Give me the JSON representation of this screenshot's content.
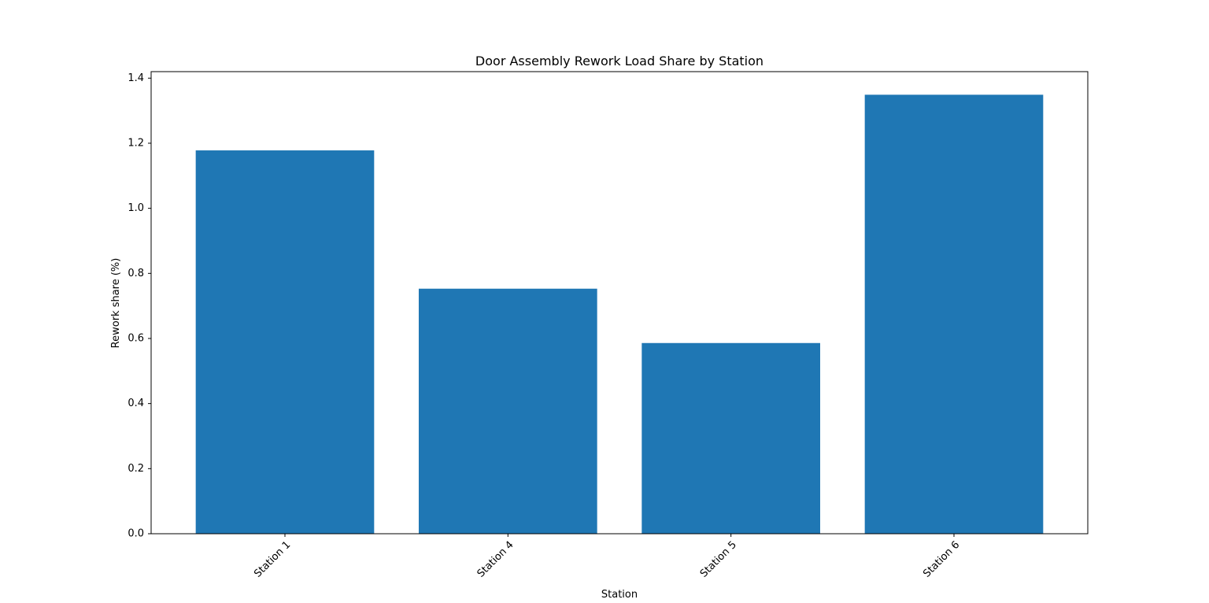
{
  "chart_data": {
    "type": "bar",
    "title": "Door Assembly Rework Load Share by Station",
    "xlabel": "Station",
    "ylabel": "Rework share (%)",
    "categories": [
      "Station 1",
      "Station 4",
      "Station 5",
      "Station 6"
    ],
    "values": [
      1.178,
      0.753,
      0.586,
      1.349
    ],
    "ylim": [
      0,
      1.42
    ],
    "yticks": [
      "0.0",
      "0.2",
      "0.4",
      "0.6",
      "0.8",
      "1.0",
      "1.2",
      "1.4"
    ],
    "grid": false,
    "legend": "none",
    "colors": {
      "bar": "#1f77b4",
      "axes": "#000000",
      "background": "#ffffff"
    }
  }
}
